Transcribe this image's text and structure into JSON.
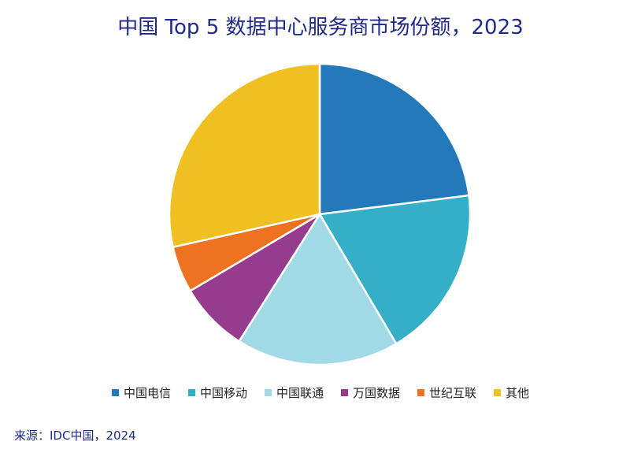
{
  "chart_data": {
    "type": "pie",
    "title": "中国 Top 5 数据中心服务商市场份额，2023",
    "slices": [
      {
        "label": "中国电信",
        "value": 23.0,
        "color": "#2479ba"
      },
      {
        "label": "中国移动",
        "value": 18.5,
        "color": "#35afc8"
      },
      {
        "label": "中国联通",
        "value": 17.5,
        "color": "#a1d9e6"
      },
      {
        "label": "万国数据",
        "value": 7.5,
        "color": "#963c8e"
      },
      {
        "label": "世纪互联",
        "value": 5.0,
        "color": "#ef7221"
      },
      {
        "label": "其他",
        "value": 28.5,
        "color": "#f0bf21"
      }
    ],
    "legend_position": "bottom"
  },
  "source": "来源：IDC中国，2024"
}
